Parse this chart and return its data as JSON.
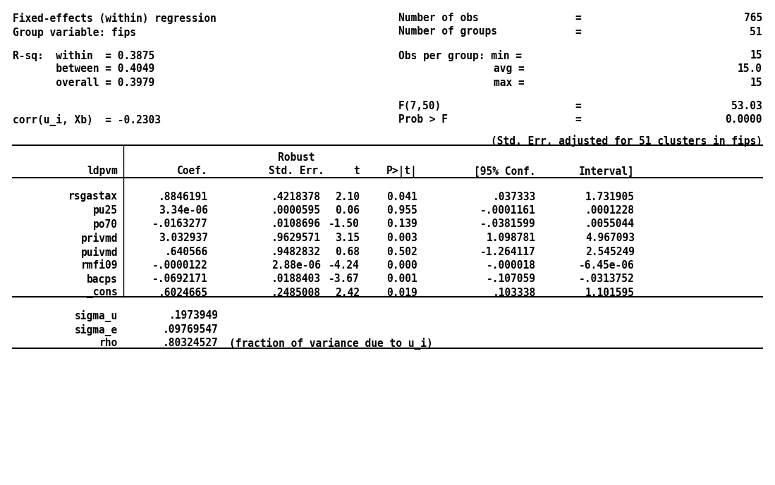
{
  "bg_color": "#ffffff",
  "text_color": "#000000",
  "line_color": "#000000",
  "fontsize": 10.5,
  "font_family": "monospace",
  "font_weight": "bold",
  "line1_left": "Fixed-effects (within) regression",
  "line1_right_label": "Number of obs",
  "line1_right_eq": "=",
  "line1_right_val": "765",
  "line2_left": "Group variable: fips",
  "line2_right_label": "Number of groups",
  "line2_right_eq": "=",
  "line2_right_val": "51",
  "rsq_within": "R-sq:  within  = 0.3875",
  "rsq_between": "       between = 0.4049",
  "rsq_overall": "       overall = 0.3979",
  "obs_min_label": "Obs per group: min =",
  "obs_min_val": "15",
  "obs_avg_label": "               avg =",
  "obs_avg_val": "15.0",
  "obs_max_label": "               max =",
  "obs_max_val": "15",
  "f_label": "F(7,50)",
  "f_eq": "=",
  "f_val": "53.03",
  "prob_label": "Prob > F",
  "prob_eq": "=",
  "prob_val": "0.0000",
  "corr_line": "corr(u_i, Xb)  = -0.2303",
  "cluster_note": "(Std. Err. adjusted for 51 clusters in fips)",
  "col_header_dep": "ldpvm",
  "col_header_coef": "Coef.",
  "col_header_robust": "Robust",
  "col_header_se": "Std. Err.",
  "col_header_t": "t",
  "col_header_p": "P>|t|",
  "col_header_ci1": "[95% Conf.",
  "col_header_ci2": "Interval]",
  "table_rows": [
    [
      "rsgastax",
      ".8846191",
      ".4218378",
      "2.10",
      "0.041",
      ".037333",
      "1.731905"
    ],
    [
      "pu25",
      "3.34e-06",
      ".0000595",
      "0.06",
      "0.955",
      "-.0001161",
      ".0001228"
    ],
    [
      "po70",
      "-.0163277",
      ".0108696",
      "-1.50",
      "0.139",
      "-.0381599",
      ".0055044"
    ],
    [
      "privmd",
      "3.032937",
      ".9629571",
      "3.15",
      "0.003",
      "1.098781",
      "4.967093"
    ],
    [
      "puivmd",
      ".640566",
      ".9482832",
      "0.68",
      "0.502",
      "-1.264117",
      "2.545249"
    ],
    [
      "rmfi09",
      "-.0000122",
      "2.88e-06",
      "-4.24",
      "0.000",
      "-.000018",
      "-6.45e-06"
    ],
    [
      "bacps",
      "-.0692171",
      ".0188403",
      "-3.67",
      "0.001",
      "-.107059",
      "-.0313752"
    ],
    [
      "_cons",
      ".6024665",
      ".2485008",
      "2.42",
      "0.019",
      ".103338",
      "1.101595"
    ]
  ],
  "sigma_u_label": "sigma_u",
  "sigma_u_val": ".1973949",
  "sigma_e_label": "sigma_e",
  "sigma_e_val": ".09769547",
  "rho_label": "rho",
  "rho_val": ".80324527",
  "rho_note": "(fraction of variance due to u_i)"
}
